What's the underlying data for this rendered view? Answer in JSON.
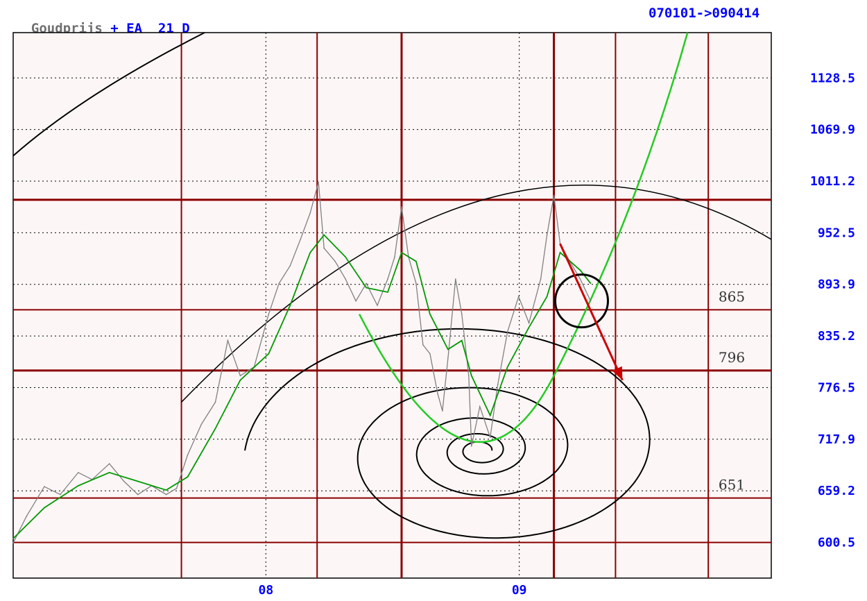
{
  "header": {
    "instrument": "Goudprijs",
    "indicator": "+ EA  21 D",
    "date_range": "070101->090414"
  },
  "colors": {
    "background": "#fdf6f6",
    "price": "#808080",
    "ema": "#009900",
    "ema_red": "#990000",
    "axis_text": "#0000ff",
    "grid_red": "#8b0000",
    "spiral_green": "#22cc22",
    "arrow": "#cc0000"
  },
  "chart_data": {
    "type": "line",
    "title": "Goudprijs + EA 21 D",
    "date_range": "070101->090414",
    "x_ticks": [
      {
        "label": "08",
        "date": "2008-01-01"
      },
      {
        "label": "09",
        "date": "2009-01-01"
      }
    ],
    "y_ticks": [
      "1128.5",
      "1069.9",
      "1011.2",
      "952.5",
      "893.9",
      "835.2",
      "776.5",
      "717.9",
      "659.2",
      "600.5"
    ],
    "ylim": [
      560,
      1180
    ],
    "xlim": [
      "2007-01-01",
      "2009-12-31"
    ],
    "horizontal_levels": [
      {
        "value": 990
      },
      {
        "value": 865,
        "label": "865"
      },
      {
        "value": 796,
        "label": "796"
      },
      {
        "value": 651,
        "label": "651"
      },
      {
        "value": 600.5
      }
    ],
    "vertical_cycle_dates": [
      "2007-09-01",
      "2008-03-15",
      "2008-07-15",
      "2009-02-20",
      "2009-05-20",
      "2009-10-01"
    ],
    "annotations": [
      {
        "kind": "circle",
        "date": "2009-04-01",
        "value": 875
      },
      {
        "kind": "arrow",
        "from_date": "2009-03-01",
        "from_value": 940,
        "to_date": "2009-05-30",
        "to_value": 785
      },
      {
        "kind": "spiral_trend",
        "description": "green parabola"
      }
    ],
    "series": [
      {
        "name": "price",
        "points": [
          [
            "2007-01-01",
            600
          ],
          [
            "2007-01-20",
            630
          ],
          [
            "2007-02-15",
            664
          ],
          [
            "2007-03-10",
            655
          ],
          [
            "2007-04-05",
            680
          ],
          [
            "2007-04-25",
            672
          ],
          [
            "2007-05-20",
            690
          ],
          [
            "2007-06-10",
            670
          ],
          [
            "2007-06-30",
            655
          ],
          [
            "2007-07-20",
            665
          ],
          [
            "2007-08-10",
            655
          ],
          [
            "2007-08-25",
            662
          ],
          [
            "2007-09-10",
            700
          ],
          [
            "2007-09-30",
            735
          ],
          [
            "2007-10-20",
            760
          ],
          [
            "2007-11-07",
            830
          ],
          [
            "2007-11-25",
            790
          ],
          [
            "2007-12-15",
            800
          ],
          [
            "2008-01-05",
            860
          ],
          [
            "2008-01-20",
            895
          ],
          [
            "2008-02-05",
            915
          ],
          [
            "2008-02-20",
            945
          ],
          [
            "2008-03-05",
            975
          ],
          [
            "2008-03-17",
            1010
          ],
          [
            "2008-03-25",
            935
          ],
          [
            "2008-04-10",
            920
          ],
          [
            "2008-04-25",
            900
          ],
          [
            "2008-05-10",
            875
          ],
          [
            "2008-05-25",
            895
          ],
          [
            "2008-06-10",
            870
          ],
          [
            "2008-06-25",
            900
          ],
          [
            "2008-07-05",
            925
          ],
          [
            "2008-07-15",
            982
          ],
          [
            "2008-07-25",
            925
          ],
          [
            "2008-08-05",
            895
          ],
          [
            "2008-08-15",
            825
          ],
          [
            "2008-08-25",
            815
          ],
          [
            "2008-09-05",
            770
          ],
          [
            "2008-09-12",
            750
          ],
          [
            "2008-09-20",
            810
          ],
          [
            "2008-10-01",
            900
          ],
          [
            "2008-10-10",
            860
          ],
          [
            "2008-10-20",
            790
          ],
          [
            "2008-10-24",
            710
          ],
          [
            "2008-11-05",
            755
          ],
          [
            "2008-11-20",
            720
          ],
          [
            "2008-12-01",
            780
          ],
          [
            "2008-12-15",
            840
          ],
          [
            "2008-12-31",
            880
          ],
          [
            "2009-01-15",
            850
          ],
          [
            "2009-02-01",
            900
          ],
          [
            "2009-02-10",
            950
          ],
          [
            "2009-02-20",
            995
          ],
          [
            "2009-03-01",
            940
          ],
          [
            "2009-03-15",
            920
          ],
          [
            "2009-03-30",
            900
          ],
          [
            "2009-04-14",
            875
          ]
        ]
      },
      {
        "name": "EA 21 D",
        "points": [
          [
            "2007-01-01",
            605
          ],
          [
            "2007-02-15",
            640
          ],
          [
            "2007-04-05",
            665
          ],
          [
            "2007-05-20",
            680
          ],
          [
            "2007-06-30",
            670
          ],
          [
            "2007-08-10",
            660
          ],
          [
            "2007-09-10",
            675
          ],
          [
            "2007-10-20",
            730
          ],
          [
            "2007-11-25",
            785
          ],
          [
            "2008-01-05",
            815
          ],
          [
            "2008-02-05",
            870
          ],
          [
            "2008-03-05",
            930
          ],
          [
            "2008-03-25",
            950
          ],
          [
            "2008-04-25",
            925
          ],
          [
            "2008-05-25",
            890
          ],
          [
            "2008-06-25",
            885
          ],
          [
            "2008-07-15",
            930
          ],
          [
            "2008-08-05",
            920
          ],
          [
            "2008-08-25",
            860
          ],
          [
            "2008-09-20",
            820
          ],
          [
            "2008-10-10",
            830
          ],
          [
            "2008-10-24",
            790
          ],
          [
            "2008-11-20",
            745
          ],
          [
            "2008-12-15",
            800
          ],
          [
            "2009-01-15",
            845
          ],
          [
            "2009-02-10",
            880
          ],
          [
            "2009-03-01",
            930
          ],
          [
            "2009-03-30",
            910
          ],
          [
            "2009-04-14",
            895
          ]
        ]
      }
    ]
  }
}
